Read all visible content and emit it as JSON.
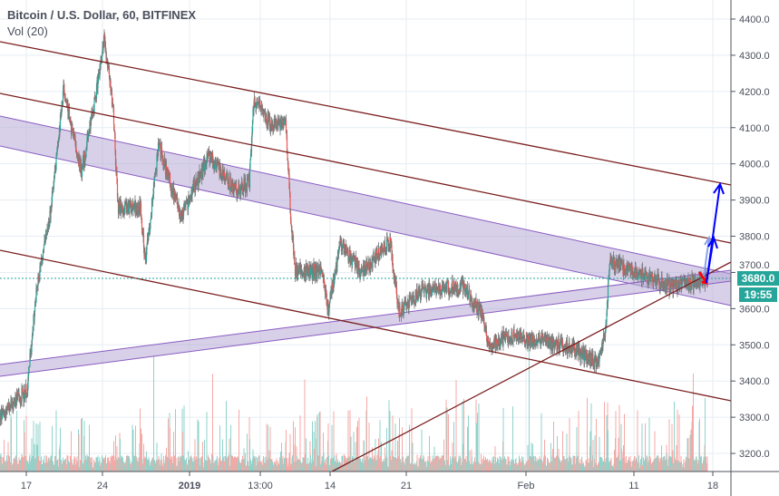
{
  "legend": {
    "title": "Bitcoin / U.S. Dollar, 60, BITFINEX",
    "indicator": "Vol (20)"
  },
  "price_tag": {
    "value": "3680.0",
    "countdown": "19:55"
  },
  "colors": {
    "up": "#26a69a",
    "down": "#ef5350",
    "wick": "#737375",
    "vol_up": "#8fd3cb",
    "vol_down": "#f5a9a6",
    "channel": "#7b1f1f",
    "band_fill": "#b7a9d6",
    "band_edge": "#8a5cc2",
    "arrow": "#0000ff",
    "grid": "#e6edf3"
  },
  "chart_data": {
    "type": "candlestick",
    "title": "Bitcoin / U.S. Dollar, 60, BITFINEX",
    "interval": "60",
    "ylim": [
      3150,
      4450
    ],
    "y_ticks": [
      "4400.0",
      "4300.0",
      "4200.0",
      "4100.0",
      "4000.0",
      "3900.0",
      "3800.0",
      "3700.0",
      "3600.0",
      "3500.0",
      "3400.0",
      "3300.0",
      "3200.0"
    ],
    "x_ticks": [
      "17",
      "24",
      "2019",
      "13:00",
      "14",
      "21",
      "Feb",
      "11",
      "18"
    ],
    "grid": true,
    "last_price": 3680.0,
    "approx_close_path": [
      [
        "2018-12-14T14:00",
        3300
      ],
      [
        "2018-12-17T02:00",
        3375
      ],
      [
        "2018-12-17T22:00",
        3650
      ],
      [
        "2018-12-19T04:00",
        3850
      ],
      [
        "2018-12-20T10:00",
        4200
      ],
      [
        "2018-12-22T02:00",
        3975
      ],
      [
        "2018-12-23T08:00",
        4180
      ],
      [
        "2018-12-24T04:00",
        4350
      ],
      [
        "2018-12-25T00:00",
        4150
      ],
      [
        "2018-12-25T10:00",
        3880
      ],
      [
        "2018-12-27T12:00",
        3880
      ],
      [
        "2018-12-27T22:00",
        3725
      ],
      [
        "2018-12-29T04:00",
        4050
      ],
      [
        "2018-12-31T06:00",
        3850
      ],
      [
        "2019-01-02T18:00",
        4025
      ],
      [
        "2019-01-05T06:00",
        3925
      ],
      [
        "2019-01-06T12:00",
        3950
      ],
      [
        "2019-01-06T22:00",
        4180
      ],
      [
        "2019-01-08T14:00",
        4100
      ],
      [
        "2019-01-09T20:00",
        4120
      ],
      [
        "2019-01-10T06:00",
        3880
      ],
      [
        "2019-01-10T16:00",
        3710
      ],
      [
        "2019-01-13T04:00",
        3700
      ],
      [
        "2019-01-13T18:00",
        3600
      ],
      [
        "2019-01-14T20:00",
        3775
      ],
      [
        "2019-01-16T22:00",
        3700
      ],
      [
        "2019-01-19T10:00",
        3790
      ],
      [
        "2019-01-20T06:00",
        3590
      ],
      [
        "2019-01-22T08:00",
        3650
      ],
      [
        "2019-01-26T02:00",
        3660
      ],
      [
        "2019-01-27T18:00",
        3590
      ],
      [
        "2019-01-28T14:00",
        3500
      ],
      [
        "2019-01-30T06:00",
        3525
      ],
      [
        "2019-02-02T14:00",
        3510
      ],
      [
        "2019-02-05T02:00",
        3490
      ],
      [
        "2019-02-07T14:00",
        3450
      ],
      [
        "2019-02-08T06:00",
        3540
      ],
      [
        "2019-02-08T14:00",
        3725
      ],
      [
        "2019-02-10T22:00",
        3700
      ],
      [
        "2019-02-14T06:00",
        3660
      ],
      [
        "2019-02-17T14:00",
        3680
      ]
    ]
  }
}
